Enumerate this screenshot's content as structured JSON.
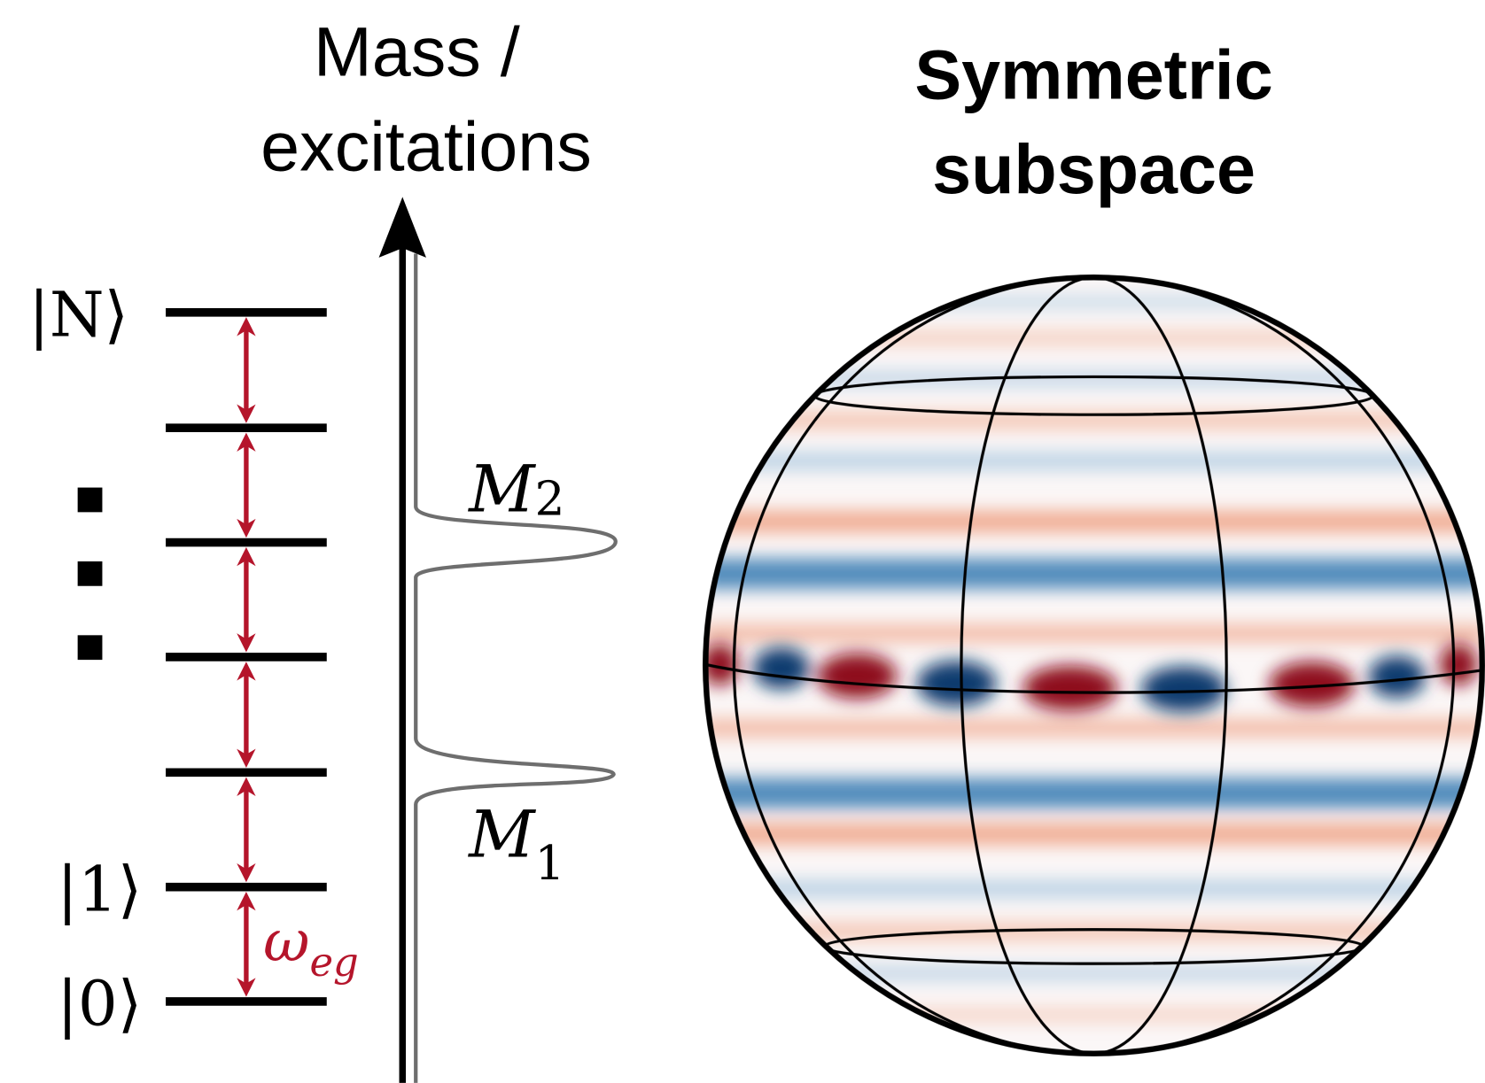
{
  "axis_label": {
    "lines": [
      "Mass /",
      "excitations"
    ]
  },
  "title": {
    "lines": [
      "Symmetric",
      "subspace"
    ]
  },
  "levels": {
    "top": "|N⟩",
    "one": "|1⟩",
    "zero": "|0⟩"
  },
  "transition": {
    "symbol": "ω",
    "subscript": "eg"
  },
  "peaks": [
    {
      "symbol": "M",
      "subscript": "2"
    },
    {
      "symbol": "M",
      "subscript": "1"
    }
  ]
}
